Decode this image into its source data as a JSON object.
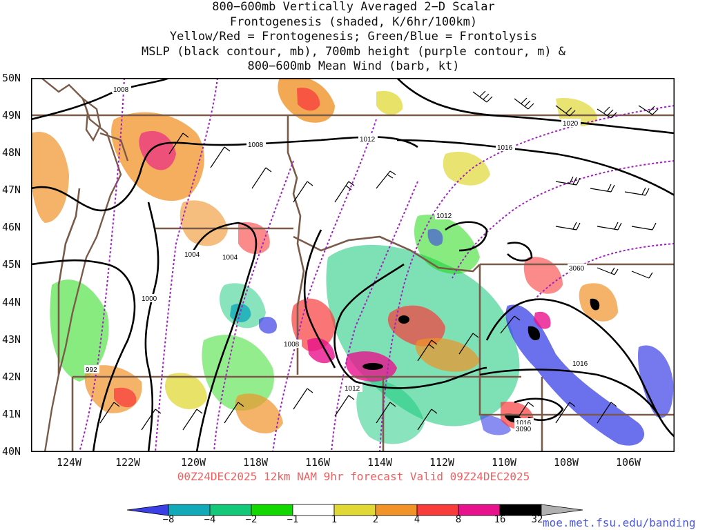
{
  "title_lines": [
    "800−600mb Vertically Averaged 2−D Scalar",
    "Frontogenesis (shaded, K/6hr/100km)",
    "Yellow/Red = Frontogenesis;  Green/Blue = Frontolysis",
    "MSLP (black contour, mb), 700mb height (purple contour, m) &",
    "800−600mb Mean Wind (barb, kt)"
  ],
  "map": {
    "lat_labels": [
      "50N",
      "49N",
      "48N",
      "47N",
      "46N",
      "45N",
      "44N",
      "43N",
      "42N",
      "41N",
      "40N"
    ],
    "lon_labels": [
      "124W",
      "122W",
      "120W",
      "118W",
      "116W",
      "114W",
      "112W",
      "110W",
      "108W",
      "106W"
    ],
    "isobar_labels": [
      "1008",
      "1008",
      "1012",
      "1020",
      "1016",
      "1012",
      "1004",
      "1004",
      "1000",
      "992",
      "1008",
      "1012",
      "1016",
      "1016"
    ],
    "height_labels": [
      "3060",
      "3090"
    ],
    "colors": {
      "isobar": "#000000",
      "height": "#a020c0",
      "state_border": "#7a5a48"
    }
  },
  "valid_line": "00Z24DEC2025 12km NAM 9hr forecast Valid 09Z24DEC2025",
  "colorbar": {
    "labels": [
      "−8",
      "−4",
      "−2",
      "−1",
      "1",
      "2",
      "4",
      "8",
      "16",
      "32"
    ],
    "colors": [
      "#3a40e6",
      "#12a9b8",
      "#14c87a",
      "#12d800",
      "#ffffff",
      "#e0d835",
      "#f09328",
      "#f83c3c",
      "#e8138c",
      "#000000"
    ],
    "over_color": "#b0b0b0"
  },
  "credit": "moe.met.fsu.edu/banding"
}
